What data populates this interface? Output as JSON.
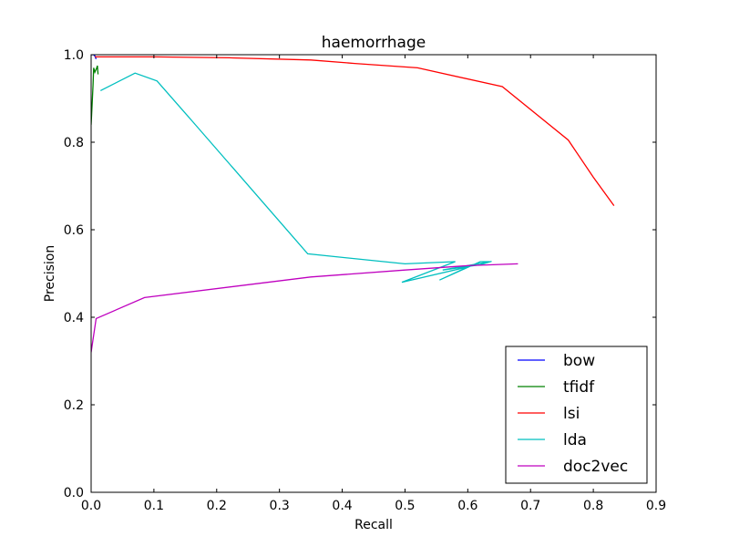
{
  "chart_data": {
    "type": "line",
    "title": "haemorrhage",
    "xlabel": "Recall",
    "ylabel": "Precision",
    "xlim": [
      0.0,
      0.9
    ],
    "ylim": [
      0.0,
      1.0
    ],
    "xticks": [
      "0.0",
      "0.1",
      "0.2",
      "0.3",
      "0.4",
      "0.5",
      "0.6",
      "0.7",
      "0.8",
      "0.9"
    ],
    "yticks": [
      "0.0",
      "0.2",
      "0.4",
      "0.6",
      "0.8",
      "1.0"
    ],
    "grid": false,
    "legend_position": "lower-right",
    "series": [
      {
        "name": "bow",
        "color": "#0000ff",
        "x": [
          0.0,
          0.002,
          0.004,
          0.006,
          0.008
        ],
        "y": [
          1.0,
          1.0,
          1.0,
          0.997,
          0.99
        ]
      },
      {
        "name": "tfidf",
        "color": "#008000",
        "x": [
          0.0,
          0.003,
          0.004,
          0.006,
          0.009,
          0.01,
          0.011
        ],
        "y": [
          0.84,
          0.93,
          0.97,
          0.96,
          0.97,
          0.975,
          0.955
        ]
      },
      {
        "name": "lsi",
        "color": "#ff0000",
        "x": [
          0.006,
          0.1,
          0.22,
          0.35,
          0.42,
          0.52,
          0.655,
          0.76,
          0.8,
          0.833
        ],
        "y": [
          0.995,
          0.995,
          0.993,
          0.988,
          0.98,
          0.97,
          0.927,
          0.805,
          0.72,
          0.655
        ]
      },
      {
        "name": "lda",
        "color": "#00bfbf",
        "x": [
          0.015,
          0.07,
          0.105,
          0.16,
          0.345,
          0.5,
          0.58,
          0.495,
          0.6,
          0.555,
          0.62,
          0.635,
          0.56,
          0.62,
          0.638
        ],
        "y": [
          0.918,
          0.958,
          0.94,
          0.85,
          0.545,
          0.522,
          0.527,
          0.48,
          0.515,
          0.485,
          0.527,
          0.527,
          0.508,
          0.52,
          0.528
        ]
      },
      {
        "name": "doc2vec",
        "color": "#bf00bf",
        "x": [
          0.0,
          0.008,
          0.085,
          0.35,
          0.5,
          0.6,
          0.68
        ],
        "y": [
          0.32,
          0.397,
          0.445,
          0.492,
          0.508,
          0.518,
          0.522
        ]
      }
    ]
  }
}
